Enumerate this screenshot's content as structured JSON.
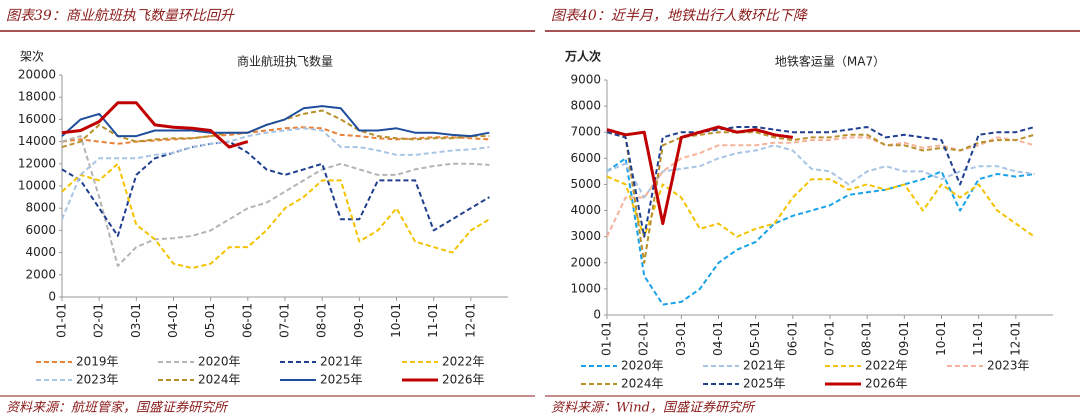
{
  "chart_data": [
    {
      "type": "line",
      "figure_title": "图表39：商业航班执飞数量环比回升",
      "title": "商业航班执飞数量",
      "ylabel": "架次",
      "source": "资料来源：航班管家，国盛证券研究所",
      "categories": [
        "01-01",
        null,
        "02-01",
        null,
        "03-01",
        null,
        "04-01",
        null,
        "05-01",
        null,
        "06-01",
        null,
        "07-01",
        null,
        "08-01",
        null,
        "09-01",
        null,
        "10-01",
        null,
        "11-01",
        null,
        "12-01",
        null
      ],
      "ylim": [
        0,
        20000
      ],
      "yticks": [
        0,
        2000,
        4000,
        6000,
        8000,
        10000,
        12000,
        14000,
        16000,
        18000,
        20000
      ],
      "grid": false,
      "series": [
        {
          "name": "2019年",
          "color": "#e8823a",
          "style": "dashed",
          "values": [
            14000,
            14200,
            14000,
            13800,
            14000,
            14100,
            14200,
            14300,
            14500,
            14600,
            14800,
            15000,
            15200,
            15300,
            15200,
            14600,
            14500,
            14300,
            14200,
            14300,
            14400,
            14400,
            14300,
            14200
          ]
        },
        {
          "name": "2020年",
          "color": "#b4b4b4",
          "style": "dashed",
          "values": [
            14000,
            14500,
            9000,
            2800,
            4500,
            5200,
            5300,
            5500,
            6000,
            7000,
            8000,
            8500,
            9500,
            10500,
            11500,
            12000,
            11500,
            11000,
            11000,
            11500,
            11800,
            12000,
            12000,
            11900
          ]
        },
        {
          "name": "2021年",
          "color": "#1f3f8f",
          "style": "dashed",
          "values": [
            11500,
            10500,
            8000,
            5500,
            11000,
            12500,
            13000,
            13500,
            13800,
            14000,
            13000,
            11500,
            11000,
            11500,
            12000,
            7000,
            7000,
            10500,
            10500,
            10500,
            6000,
            7000,
            8000,
            9000
          ]
        },
        {
          "name": "2022年",
          "color": "#f5c200",
          "style": "dashed",
          "values": [
            9500,
            11000,
            10500,
            12000,
            6500,
            5200,
            3000,
            2600,
            3000,
            4500,
            4500,
            6000,
            8000,
            9000,
            10500,
            10500,
            5000,
            6000,
            8000,
            5000,
            4500,
            4000,
            6000,
            7000
          ]
        },
        {
          "name": "2023年",
          "color": "#a9c4e4",
          "style": "dashed",
          "values": [
            7000,
            11000,
            12500,
            12500,
            12500,
            12800,
            13000,
            13500,
            13800,
            14000,
            14500,
            14800,
            15000,
            15200,
            15000,
            13500,
            13500,
            13200,
            12800,
            12800,
            13000,
            13200,
            13300,
            13500
          ]
        },
        {
          "name": "2024年",
          "color": "#b8902a",
          "style": "dashed",
          "values": [
            13500,
            14000,
            15500,
            14500,
            14000,
            14200,
            14300,
            14300,
            14500,
            14800,
            14800,
            15500,
            16000,
            16500,
            16800,
            16000,
            15000,
            14500,
            14300,
            14200,
            14300,
            14300,
            14500,
            14500
          ]
        },
        {
          "name": "2025年",
          "color": "#1f4e9c",
          "style": "solid",
          "values": [
            14500,
            16000,
            16500,
            14500,
            14500,
            15000,
            15000,
            15000,
            14800,
            14800,
            14800,
            15500,
            16000,
            17000,
            17200,
            17000,
            15000,
            15000,
            15200,
            14800,
            14800,
            14600,
            14500,
            14800
          ]
        },
        {
          "name": "2026年",
          "color": "#c00000",
          "style": "solid",
          "width": 3,
          "values": [
            14800,
            15000,
            15800,
            17500,
            17500,
            15500,
            15300,
            15200,
            15000,
            13500,
            14000,
            null,
            null,
            null,
            null,
            null,
            null,
            null,
            null,
            null,
            null,
            null,
            null,
            null
          ]
        }
      ]
    },
    {
      "type": "line",
      "figure_title": "图表40：近半月，地铁出行人数环比下降",
      "title": "地铁客运量（MA7）",
      "ylabel": "万人次",
      "source": "资料来源：Wind，国盛证券研究所",
      "categories": [
        "01-01",
        null,
        "02-01",
        null,
        "03-01",
        null,
        "04-01",
        null,
        "05-01",
        null,
        "06-01",
        null,
        "07-01",
        null,
        "08-01",
        null,
        "09-01",
        null,
        "10-01",
        null,
        "11-01",
        null,
        "12-01",
        null
      ],
      "ylim": [
        0,
        9000
      ],
      "yticks": [
        0,
        1000,
        2000,
        3000,
        4000,
        5000,
        6000,
        7000,
        8000,
        9000
      ],
      "grid": false,
      "series": [
        {
          "name": "2020年",
          "color": "#18a3e8",
          "style": "dashed",
          "values": [
            5500,
            6000,
            1500,
            400,
            500,
            1000,
            2000,
            2500,
            2800,
            3500,
            3800,
            4000,
            4200,
            4600,
            4700,
            4800,
            5000,
            5200,
            5500,
            4000,
            5200,
            5400,
            5300,
            5400
          ]
        },
        {
          "name": "2021年",
          "color": "#a9c4e4",
          "style": "dashed",
          "values": [
            5500,
            5800,
            4500,
            5500,
            5600,
            5700,
            6000,
            6200,
            6300,
            6500,
            6300,
            5600,
            5500,
            5000,
            5500,
            5700,
            5500,
            5500,
            5200,
            5500,
            5700,
            5700,
            5500,
            5400
          ]
        },
        {
          "name": "2022年",
          "color": "#f5c200",
          "style": "dashed",
          "values": [
            5300,
            5000,
            3000,
            5000,
            4500,
            3300,
            3500,
            3000,
            3300,
            3500,
            4500,
            5200,
            5200,
            4800,
            5000,
            4800,
            5000,
            4000,
            5000,
            4500,
            5000,
            4000,
            3500,
            3000
          ]
        },
        {
          "name": "2023年",
          "color": "#f4b39a",
          "style": "dashed",
          "values": [
            3000,
            4500,
            4500,
            5500,
            6000,
            6200,
            6500,
            6500,
            6500,
            6600,
            6600,
            6700,
            6700,
            6800,
            6800,
            6500,
            6600,
            6400,
            6500,
            6300,
            6500,
            6800,
            6700,
            6500
          ]
        },
        {
          "name": "2024年",
          "color": "#b8902a",
          "style": "dashed",
          "values": [
            7000,
            6800,
            2000,
            6500,
            6800,
            6900,
            7000,
            7000,
            7000,
            6800,
            6700,
            6800,
            6800,
            6900,
            6900,
            6500,
            6500,
            6300,
            6400,
            6300,
            6600,
            6700,
            6700,
            6900
          ]
        },
        {
          "name": "2025年",
          "color": "#1f3f8f",
          "style": "dashed",
          "values": [
            7000,
            6800,
            3000,
            6800,
            7000,
            7000,
            7100,
            7200,
            7200,
            7100,
            7000,
            7000,
            7000,
            7100,
            7200,
            6800,
            6900,
            6800,
            6700,
            5000,
            6900,
            7000,
            7000,
            7200
          ]
        },
        {
          "name": "2026年",
          "color": "#c00000",
          "style": "solid",
          "width": 3,
          "values": [
            7100,
            6900,
            7000,
            3500,
            6800,
            7000,
            7200,
            7000,
            7100,
            6900,
            6800,
            null,
            null,
            null,
            null,
            null,
            null,
            null,
            null,
            null,
            null,
            null,
            null,
            null
          ]
        }
      ]
    }
  ]
}
